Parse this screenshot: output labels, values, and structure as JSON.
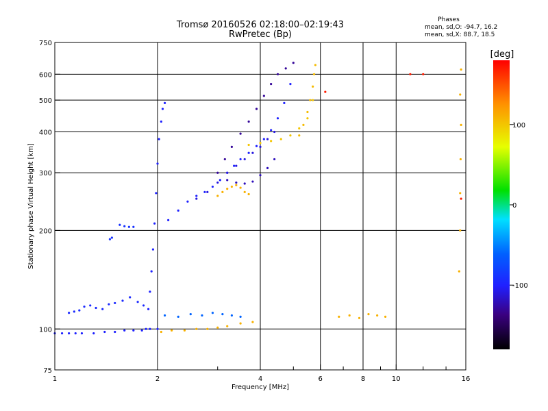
{
  "header": {
    "title_line1": "Tromsø 20160526 02:18:00–02:19:43",
    "title_line2": "RwPretec (Bp)",
    "phase_heading": "Phases",
    "phase_o": "mean, sd,O: -94.7, 16.2",
    "phase_x": "mean, sd,X:  88.7, 18.5"
  },
  "chart_data": {
    "type": "scatter",
    "title": "Tromsø 20160526 02:18:00–02:19:43",
    "subtitle": "RwPretec (Bp)",
    "xlabel": "Frequency [MHz]",
    "ylabel": "Stationary phase Virtual Height [km]",
    "xscale": "log",
    "yscale": "log",
    "xlim": [
      1,
      16
    ],
    "ylim": [
      75,
      750
    ],
    "xticks": [
      "1",
      "2",
      "4",
      "6",
      "8",
      "10",
      "16"
    ],
    "xtick_values": [
      1,
      2,
      4,
      6,
      8,
      10,
      16
    ],
    "xgrid_values": [
      2,
      4,
      6,
      8,
      10
    ],
    "xminor_values": [
      3,
      5,
      7,
      9,
      12,
      14
    ],
    "yticks": [
      "75",
      "100",
      "200",
      "300",
      "400",
      "500",
      "600",
      "750"
    ],
    "ytick_values": [
      75,
      100,
      200,
      300,
      400,
      500,
      600,
      750
    ],
    "ygrid_values": [
      100,
      200,
      300,
      400,
      500,
      600
    ],
    "grid": true,
    "colorbar": {
      "label": "[deg]",
      "range": [
        -180,
        180
      ],
      "ticks": [
        "100",
        "0",
        "-100"
      ],
      "tick_values": [
        100,
        0,
        -100
      ]
    },
    "series": [
      {
        "name": "",
        "phase": -100,
        "x": [
          1.0,
          1.05,
          1.1,
          1.15,
          1.2,
          1.3,
          1.4,
          1.5,
          1.6,
          1.7,
          1.8,
          1.9,
          2.0
        ],
        "y": [
          97,
          97,
          97,
          97,
          97,
          97,
          98,
          98,
          99,
          99,
          99,
          100,
          100
        ]
      },
      {
        "name": "",
        "phase": -100,
        "x": [
          1.85,
          1.88,
          1.9,
          1.92,
          1.94,
          1.96,
          1.98,
          2.0,
          2.02,
          2.05,
          2.07,
          2.1
        ],
        "y": [
          100,
          115,
          130,
          150,
          175,
          210,
          260,
          320,
          380,
          430,
          470,
          490
        ]
      },
      {
        "name": "",
        "phase": -95,
        "x": [
          1.1,
          1.14,
          1.18,
          1.22,
          1.27,
          1.32,
          1.38,
          1.44,
          1.5,
          1.58,
          1.66,
          1.75,
          1.82
        ],
        "y": [
          112,
          113,
          114,
          117,
          118,
          116,
          115,
          119,
          120,
          122,
          125,
          121,
          118
        ]
      },
      {
        "name": "",
        "phase": -100,
        "x": [
          2.15,
          2.3,
          2.45,
          2.6,
          2.75,
          2.9,
          3.05,
          3.2,
          3.35,
          3.5,
          3.7,
          3.9,
          4.1,
          4.3,
          4.5,
          4.7,
          4.9
        ],
        "y": [
          215,
          230,
          245,
          255,
          262,
          272,
          285,
          300,
          315,
          330,
          345,
          362,
          380,
          405,
          440,
          490,
          560
        ]
      },
      {
        "name": "",
        "phase": -110,
        "x": [
          2.6,
          2.8,
          3.0,
          3.2,
          3.4,
          3.6,
          3.8,
          4.0,
          4.2,
          4.4
        ],
        "y": [
          250,
          262,
          280,
          300,
          315,
          330,
          345,
          360,
          380,
          400
        ]
      },
      {
        "name": "",
        "phase": -130,
        "x": [
          3.0,
          3.15,
          3.3,
          3.5,
          3.7,
          3.9,
          4.1,
          4.3,
          4.5,
          4.75,
          5.0
        ],
        "y": [
          300,
          330,
          360,
          395,
          430,
          470,
          515,
          560,
          600,
          625,
          650
        ]
      },
      {
        "name": "",
        "phase": -120,
        "x": [
          3.2,
          3.4,
          3.6,
          3.8,
          4.0,
          4.2,
          4.4
        ],
        "y": [
          285,
          280,
          278,
          282,
          295,
          310,
          330
        ]
      },
      {
        "name": "",
        "phase": 110,
        "x": [
          3.0,
          3.1,
          3.2,
          3.3,
          3.4,
          3.5,
          3.6,
          3.7
        ],
        "y": [
          255,
          262,
          268,
          272,
          275,
          270,
          262,
          258
        ]
      },
      {
        "name": "",
        "phase": 100,
        "x": [
          3.7,
          4.0,
          4.3,
          4.6,
          4.9,
          5.2,
          5.5,
          5.7
        ],
        "y": [
          365,
          370,
          375,
          380,
          390,
          410,
          440,
          500
        ]
      },
      {
        "name": "",
        "phase": 105,
        "x": [
          5.2,
          5.35,
          5.5,
          5.6,
          5.7,
          5.75,
          5.8
        ],
        "y": [
          390,
          420,
          460,
          500,
          550,
          600,
          640
        ]
      },
      {
        "name": "",
        "phase": 110,
        "x": [
          2.05,
          2.2,
          2.4,
          2.6,
          2.8,
          3.0,
          3.2,
          3.5,
          3.8
        ],
        "y": [
          98,
          99,
          99,
          100,
          100,
          101,
          102,
          104,
          105
        ]
      },
      {
        "name": "",
        "phase": -60,
        "x": [
          2.1,
          2.3,
          2.5,
          2.7,
          2.9,
          3.1,
          3.3,
          3.5
        ],
        "y": [
          110,
          109,
          111,
          110,
          112,
          111,
          110,
          109
        ]
      },
      {
        "name": "",
        "phase": -90,
        "x": [
          1.55,
          1.6,
          1.65,
          1.7
        ],
        "y": [
          208,
          206,
          205,
          205
        ]
      },
      {
        "name": "",
        "phase": -90,
        "x": [
          1.45,
          1.47
        ],
        "y": [
          188,
          190
        ]
      },
      {
        "name": "",
        "phase": 110,
        "x": [
          6.8,
          7.3,
          7.8,
          8.3,
          8.8,
          9.3
        ],
        "y": [
          109,
          110,
          108,
          111,
          110,
          109
        ]
      },
      {
        "name": "",
        "phase": 110,
        "x": [
          15.3,
          15.4,
          15.4,
          15.45,
          15.5,
          15.4,
          15.5
        ],
        "y": [
          150,
          200,
          260,
          330,
          420,
          520,
          620
        ]
      },
      {
        "name": "",
        "phase": 170,
        "x": [
          6.2,
          11.0,
          12.0,
          15.5
        ],
        "y": [
          530,
          600,
          600,
          250
        ]
      }
    ]
  }
}
